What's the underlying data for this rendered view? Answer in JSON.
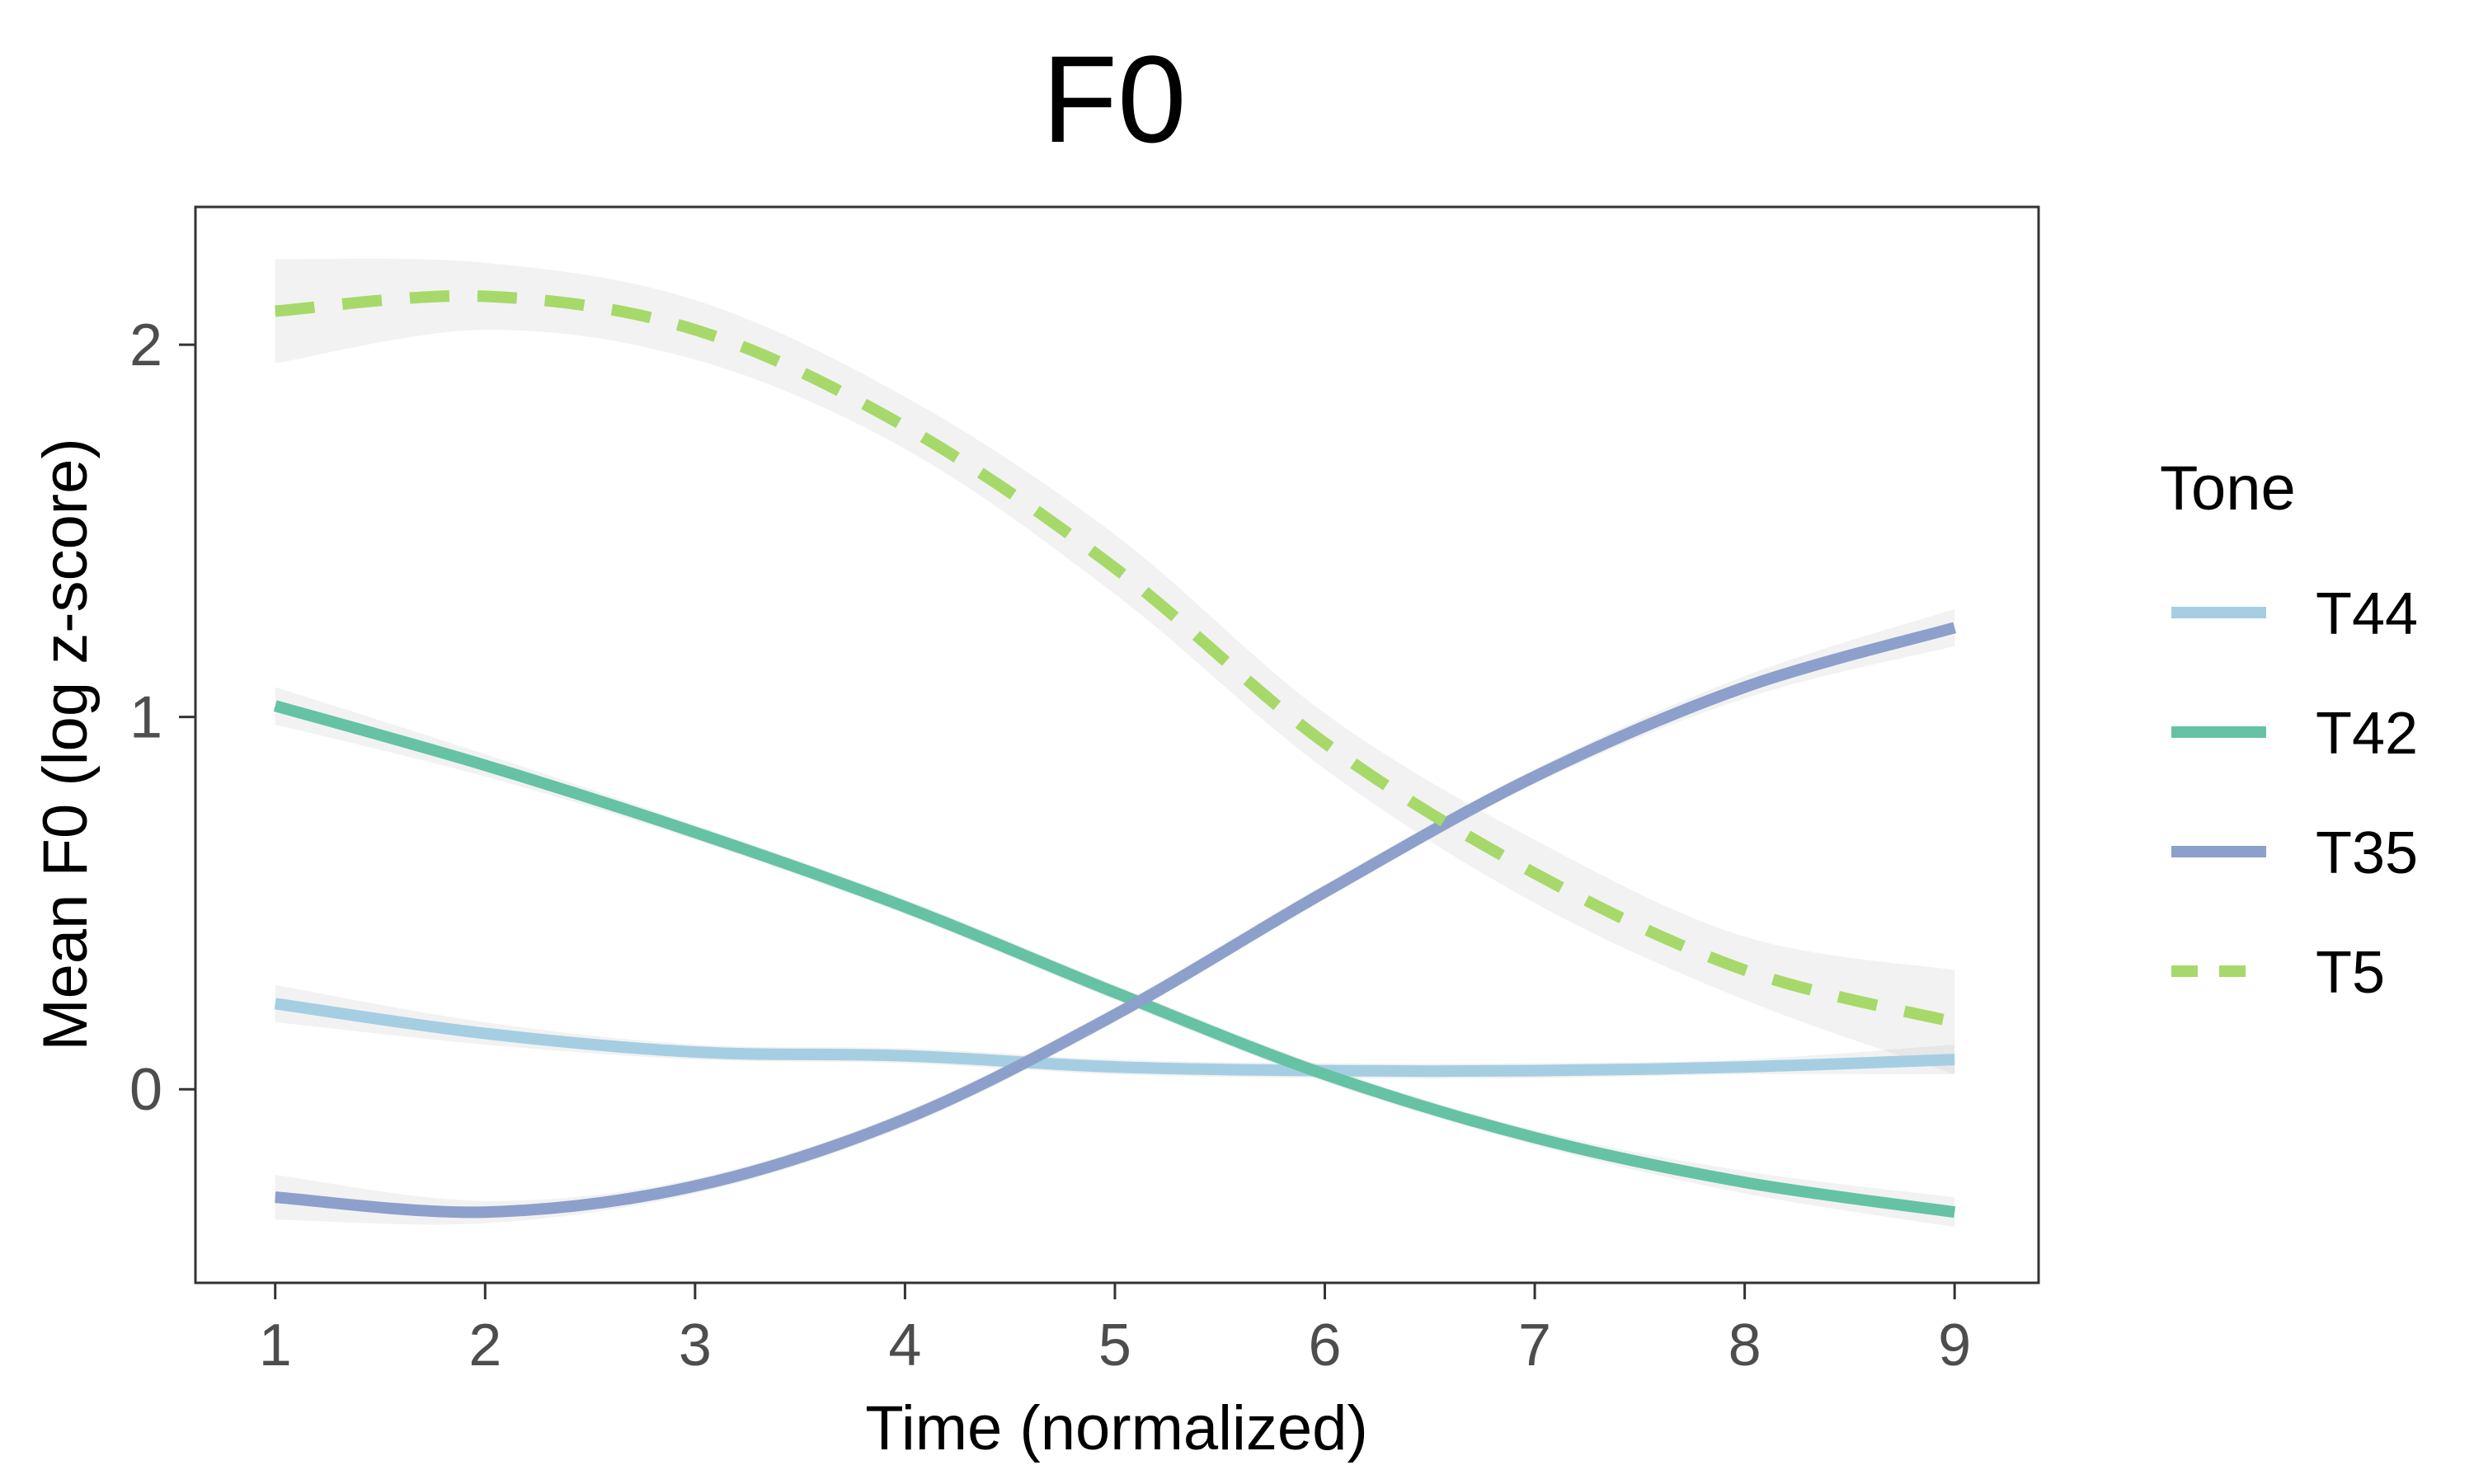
{
  "chart_data": {
    "type": "line",
    "title": "F0",
    "xlabel": "Time (normalized)",
    "ylabel": "Mean F0 (log z-score)",
    "xlim": [
      0.62,
      9.4
    ],
    "ylim": [
      -0.52,
      2.37
    ],
    "x_ticks": [
      "1",
      "2",
      "3",
      "4",
      "5",
      "6",
      "7",
      "8",
      "9"
    ],
    "y_ticks": [
      "0",
      "1",
      "2"
    ],
    "grid": false,
    "legend": {
      "title": "Tone",
      "position": "right"
    },
    "x": [
      1,
      2,
      3,
      4,
      5,
      6,
      7,
      8,
      9
    ],
    "series": [
      {
        "name": "T44",
        "color": "#a6cee3",
        "dash": "solid",
        "values": [
          0.23,
          0.15,
          0.1,
          0.09,
          0.06,
          0.05,
          0.05,
          0.06,
          0.08
        ],
        "ci_lower": [
          0.18,
          0.12,
          0.08,
          0.07,
          0.04,
          0.03,
          0.03,
          0.04,
          0.04
        ],
        "ci_upper": [
          0.28,
          0.18,
          0.12,
          0.11,
          0.08,
          0.07,
          0.07,
          0.08,
          0.12
        ]
      },
      {
        "name": "T42",
        "color": "#66c2a5",
        "dash": "solid",
        "values": [
          1.03,
          0.87,
          0.69,
          0.49,
          0.26,
          0.04,
          -0.13,
          -0.25,
          -0.33
        ],
        "ci_lower": [
          0.98,
          0.84,
          0.67,
          0.47,
          0.24,
          0.02,
          -0.15,
          -0.28,
          -0.37
        ],
        "ci_upper": [
          1.08,
          0.9,
          0.71,
          0.51,
          0.28,
          0.06,
          -0.11,
          -0.22,
          -0.29
        ]
      },
      {
        "name": "T35",
        "color": "#8da0cb",
        "dash": "solid",
        "values": [
          -0.29,
          -0.33,
          -0.26,
          -0.08,
          0.2,
          0.53,
          0.84,
          1.08,
          1.24
        ],
        "ci_lower": [
          -0.35,
          -0.36,
          -0.28,
          -0.1,
          0.18,
          0.51,
          0.82,
          1.05,
          1.19
        ],
        "ci_upper": [
          -0.23,
          -0.3,
          -0.24,
          -0.06,
          0.22,
          0.55,
          0.86,
          1.11,
          1.29
        ]
      },
      {
        "name": "T5",
        "color": "#a6d96a",
        "dash": "dashed",
        "values": [
          2.09,
          2.13,
          2.04,
          1.78,
          1.4,
          0.93,
          0.58,
          0.32,
          0.18
        ],
        "ci_lower": [
          1.95,
          2.04,
          1.96,
          1.72,
          1.33,
          0.86,
          0.5,
          0.24,
          0.04
        ],
        "ci_upper": [
          2.23,
          2.22,
          2.12,
          1.86,
          1.49,
          1.01,
          0.67,
          0.41,
          0.32
        ]
      }
    ]
  }
}
